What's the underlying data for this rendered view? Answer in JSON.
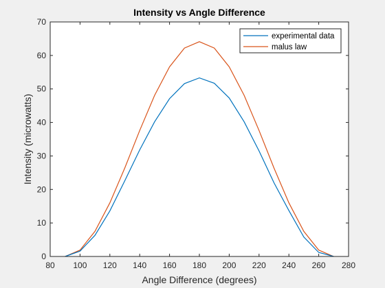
{
  "chart_data": {
    "type": "line",
    "title": "Intensity vs Angle Difference",
    "xlabel": "Angle Difference (degrees)",
    "ylabel": "Intensity (microwatts)",
    "xlim": [
      80,
      280
    ],
    "ylim": [
      0,
      70
    ],
    "xticks": [
      80,
      100,
      120,
      140,
      160,
      180,
      200,
      220,
      240,
      260,
      280
    ],
    "yticks": [
      0,
      10,
      20,
      30,
      40,
      50,
      60,
      70
    ],
    "grid": false,
    "legend_position": "top-right",
    "x": [
      90,
      100,
      110,
      120,
      130,
      140,
      150,
      160,
      170,
      180,
      190,
      200,
      210,
      220,
      230,
      240,
      250,
      260,
      270
    ],
    "series": [
      {
        "name": "experimental data",
        "color": "#0072BD",
        "values": [
          0,
          1.6,
          6.3,
          13.6,
          22.6,
          31.8,
          40.2,
          47.1,
          51.6,
          53.3,
          51.7,
          47.3,
          40.2,
          31.5,
          22.0,
          13.7,
          5.8,
          1.2,
          0
        ]
      },
      {
        "name": "malus law",
        "color": "#D95319",
        "values": [
          0,
          1.9,
          7.5,
          16.0,
          26.4,
          37.6,
          48.1,
          56.6,
          62.2,
          64.1,
          62.2,
          56.6,
          48.1,
          37.6,
          26.4,
          16.0,
          7.5,
          1.9,
          0
        ]
      }
    ]
  }
}
